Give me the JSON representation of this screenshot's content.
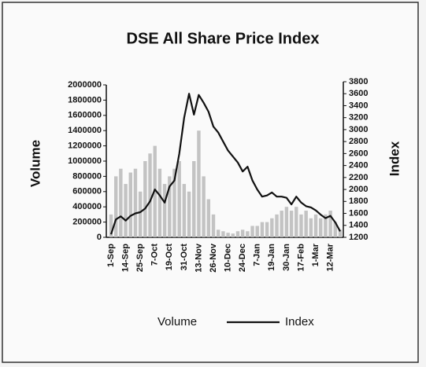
{
  "chart_data": {
    "type": "bar-line",
    "title": "DSE All Share Price Index",
    "ylabel": "Volume",
    "y2label": "Index",
    "categories": [
      "1-Sep",
      null,
      null,
      "14-Sep",
      null,
      null,
      "25-Sep",
      null,
      null,
      "7-Oct",
      null,
      null,
      "19-Oct",
      null,
      null,
      "31-Oct",
      null,
      null,
      "13-Nov",
      null,
      null,
      "26-Nov",
      null,
      null,
      "10-Dec",
      null,
      null,
      "24-Dec",
      null,
      null,
      "7-Jan",
      null,
      null,
      "19-Jan",
      null,
      null,
      "30-Jan",
      null,
      null,
      "17-Feb",
      null,
      null,
      "1-Mar",
      null,
      null,
      "12-Mar",
      null,
      null
    ],
    "series": [
      {
        "name": "Volume",
        "type": "bar",
        "color": "#b8b8b8",
        "values": [
          300000,
          800000,
          900000,
          700000,
          850000,
          900000,
          600000,
          1000000,
          1100000,
          1200000,
          900000,
          700000,
          800000,
          900000,
          1000000,
          700000,
          600000,
          1000000,
          1400000,
          800000,
          500000,
          300000,
          100000,
          80000,
          60000,
          50000,
          80000,
          100000,
          80000,
          150000,
          150000,
          200000,
          200000,
          250000,
          300000,
          350000,
          400000,
          350000,
          400000,
          300000,
          350000,
          250000,
          300000,
          250000,
          300000,
          350000,
          200000,
          100000
        ]
      },
      {
        "name": "Index",
        "type": "line",
        "axis": "y2",
        "color": "#111111",
        "values": [
          1250,
          1500,
          1550,
          1480,
          1560,
          1600,
          1620,
          1680,
          1800,
          2000,
          1900,
          1780,
          2050,
          2150,
          2600,
          3200,
          3600,
          3250,
          3580,
          3450,
          3300,
          3050,
          2950,
          2800,
          2650,
          2550,
          2450,
          2300,
          2380,
          2150,
          2000,
          1880,
          1900,
          1950,
          1880,
          1880,
          1860,
          1750,
          1880,
          1780,
          1720,
          1700,
          1650,
          1580,
          1520,
          1560,
          1450,
          1300
        ]
      }
    ],
    "ylim": [
      0,
      2000000
    ],
    "yticks": [
      0,
      200000,
      400000,
      600000,
      800000,
      1000000,
      1200000,
      1400000,
      1600000,
      1800000,
      2000000
    ],
    "y2lim": [
      1200,
      3800
    ],
    "y2ticks": [
      1200,
      1400,
      1600,
      1800,
      2000,
      2200,
      2400,
      2600,
      2800,
      3000,
      3200,
      3400,
      3600,
      3800
    ]
  }
}
